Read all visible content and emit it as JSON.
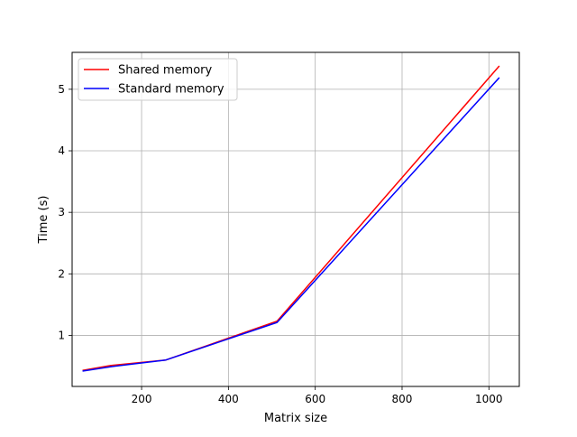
{
  "chart_data": {
    "type": "line",
    "title": "",
    "xlabel": "Matrix size",
    "ylabel": "Time (s)",
    "xlim": [
      40,
      1070
    ],
    "ylim": [
      0.17,
      5.6
    ],
    "xticks": [
      200,
      400,
      600,
      800,
      1000
    ],
    "yticks": [
      1,
      2,
      3,
      4,
      5
    ],
    "grid": true,
    "legend": "upper left",
    "series": [
      {
        "name": "Shared memory",
        "color": "#ff0000",
        "x": [
          64,
          128,
          256,
          512,
          1024
        ],
        "y": [
          0.43,
          0.51,
          0.6,
          1.23,
          5.38
        ]
      },
      {
        "name": "Standard memory",
        "color": "#0000ff",
        "x": [
          64,
          128,
          256,
          512,
          1024
        ],
        "y": [
          0.42,
          0.49,
          0.6,
          1.21,
          5.19
        ]
      }
    ]
  }
}
